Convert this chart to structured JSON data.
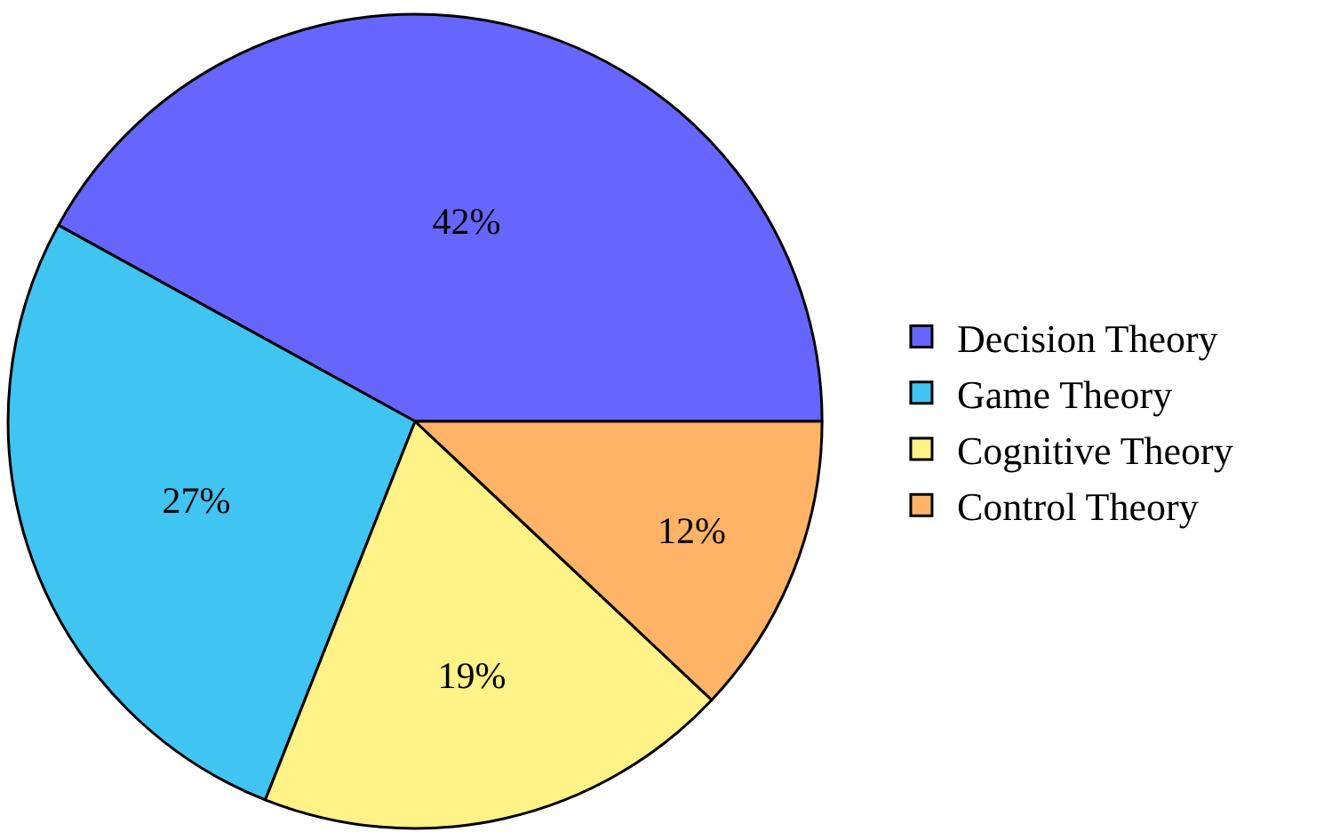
{
  "chart_data": {
    "type": "pie",
    "categories": [
      "Decision Theory",
      "Game Theory",
      "Cognitive Theory",
      "Control Theory"
    ],
    "values": [
      42,
      27,
      19,
      12
    ],
    "colors": [
      "#6666ff",
      "#40c4f2",
      "#fff387",
      "#ffb366"
    ],
    "value_labels": [
      "42%",
      "27%",
      "19%",
      "12%"
    ],
    "legend": "right"
  }
}
